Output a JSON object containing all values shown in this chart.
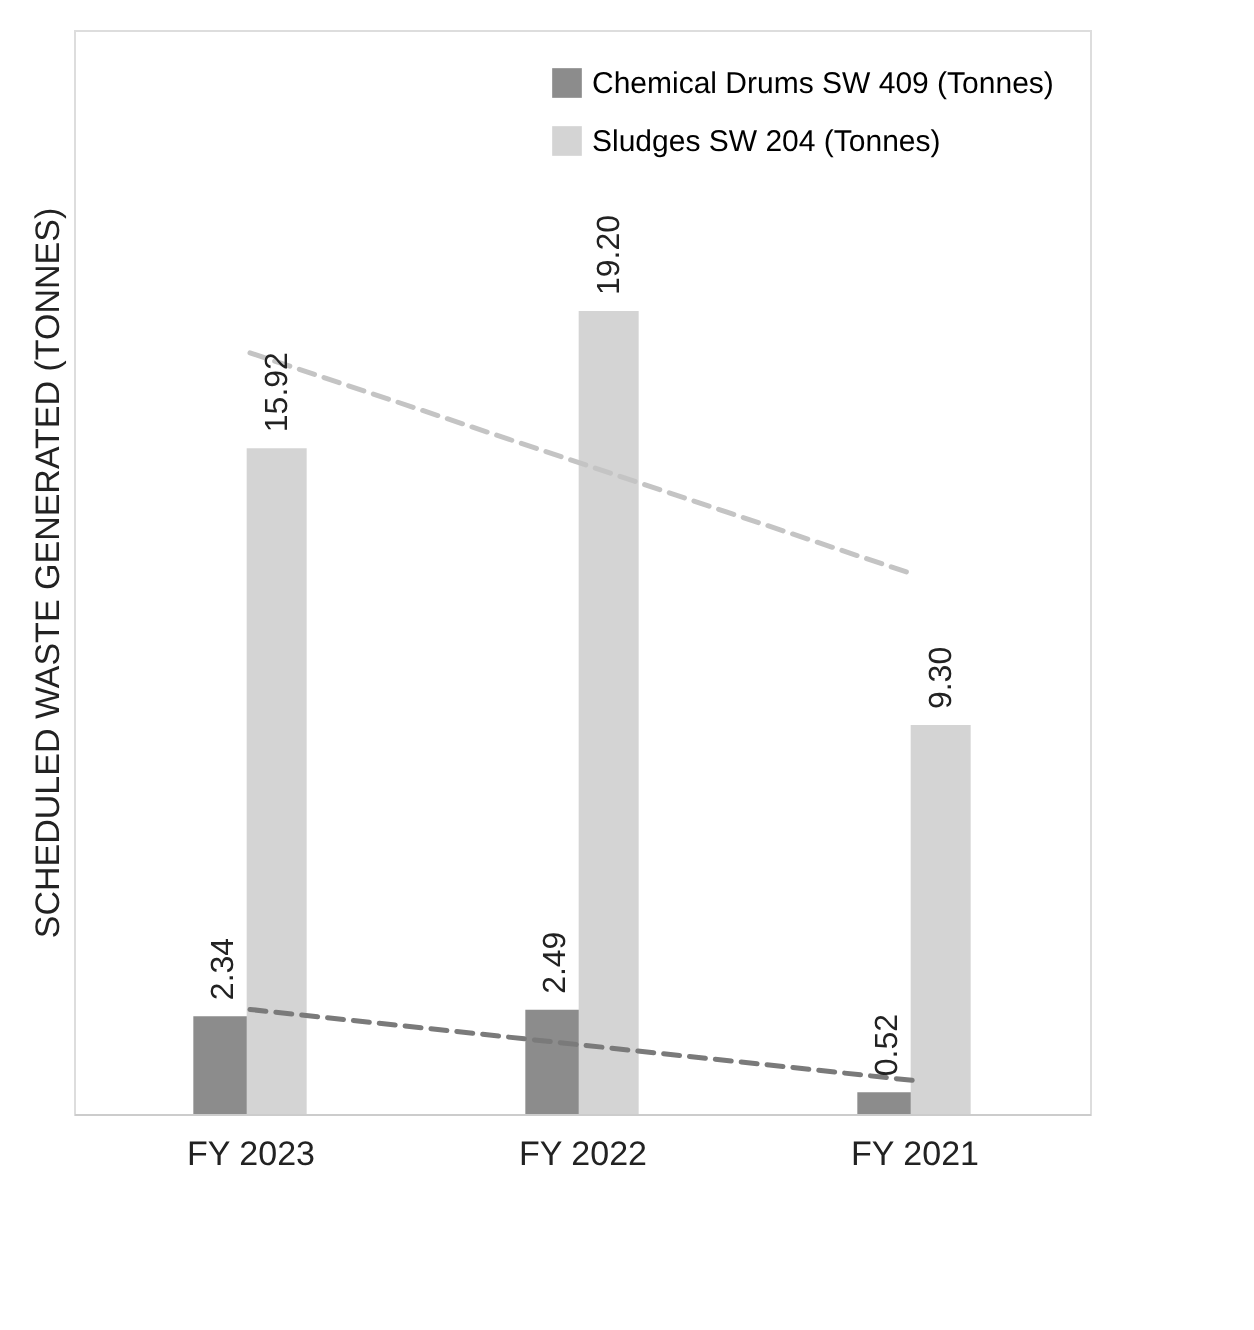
{
  "chart_data": {
    "type": "bar",
    "ylabel": "SCHEDULED WASTE GENERATED (TONNES)",
    "categories": [
      "FY 2023",
      "FY 2022",
      "FY 2021"
    ],
    "series": [
      {
        "name": "Chemical Drums SW 409 (Tonnes)",
        "color": "#8c8c8c",
        "values": [
          2.34,
          2.49,
          0.52
        ],
        "value_labels": [
          "2.34",
          "2.49",
          "0.52"
        ]
      },
      {
        "name": "Sludges SW 204 (Tonnes)",
        "color": "#d4d4d4",
        "values": [
          15.92,
          19.2,
          9.3
        ],
        "value_labels": [
          "15.92",
          "19.20",
          "9.30"
        ]
      },
      {
        "type": "line",
        "color": "#7a7a7a",
        "line_style": "dashed",
        "x": [
          "FY 2023",
          "FY 2021"
        ],
        "values": [
          2.5,
          0.8
        ]
      },
      {
        "type": "line",
        "color": "#c4c4c4",
        "line_style": "dashed",
        "x": [
          "FY 2023",
          "FY 2021"
        ],
        "values": [
          18.2,
          12.9
        ]
      }
    ],
    "grid": false,
    "legend": "top right",
    "tick_labels": "x"
  }
}
